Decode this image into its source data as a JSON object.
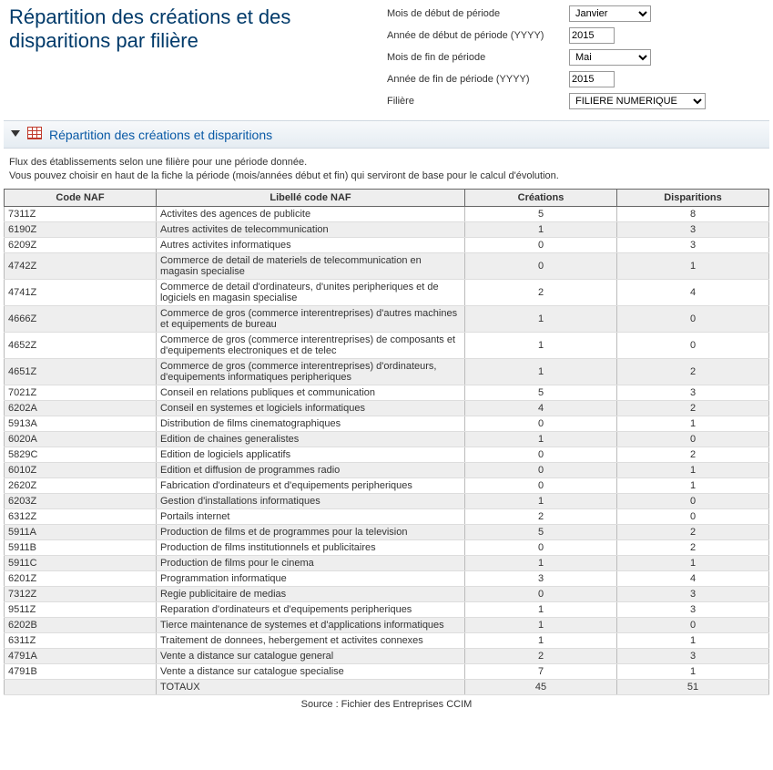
{
  "title": "Répartition des créations et des disparitions par filière",
  "filters": {
    "start_month_label": "Mois de début de période",
    "start_month_value": "Janvier",
    "start_year_label": "Année de début de période (YYYY)",
    "start_year_value": "2015",
    "end_month_label": "Mois de fin de période",
    "end_month_value": "Mai",
    "end_year_label": "Année de fin de période (YYYY)",
    "end_year_value": "2015",
    "filiere_label": "Filière",
    "filiere_value": "FILIERE NUMERIQUE"
  },
  "section_title": "Répartition des créations et disparitions",
  "description_line1": "Flux des établissements selon une filière pour une période donnée.",
  "description_line2": "Vous pouvez choisir en haut de la fiche la période (mois/années début et fin) qui serviront de base pour le calcul d'évolution.",
  "table": {
    "columns": [
      "Code NAF",
      "Libellé code NAF",
      "Créations",
      "Disparitions"
    ],
    "rows": [
      [
        "7311Z",
        "Activites des agences de publicite",
        "5",
        "8"
      ],
      [
        "6190Z",
        "Autres activites de telecommunication",
        "1",
        "3"
      ],
      [
        "6209Z",
        "Autres activites informatiques",
        "0",
        "3"
      ],
      [
        "4742Z",
        "Commerce de detail de materiels de telecommunication en magasin specialise",
        "0",
        "1"
      ],
      [
        "4741Z",
        "Commerce de detail d'ordinateurs, d'unites peripheriques et de logiciels en magasin specialise",
        "2",
        "4"
      ],
      [
        "4666Z",
        "Commerce de gros (commerce interentreprises) d'autres machines et equipements de bureau",
        "1",
        "0"
      ],
      [
        "4652Z",
        "Commerce de gros (commerce interentreprises) de composants et d'equipements electroniques et de telec",
        "1",
        "0"
      ],
      [
        "4651Z",
        "Commerce de gros (commerce interentreprises) d'ordinateurs, d'equipements informatiques peripheriques",
        "1",
        "2"
      ],
      [
        "7021Z",
        "Conseil en relations publiques et communication",
        "5",
        "3"
      ],
      [
        "6202A",
        "Conseil en systemes et logiciels informatiques",
        "4",
        "2"
      ],
      [
        "5913A",
        "Distribution de films cinematographiques",
        "0",
        "1"
      ],
      [
        "6020A",
        "Edition de chaines generalistes",
        "1",
        "0"
      ],
      [
        "5829C",
        "Edition de logiciels applicatifs",
        "0",
        "2"
      ],
      [
        "6010Z",
        "Edition et diffusion de programmes radio",
        "0",
        "1"
      ],
      [
        "2620Z",
        "Fabrication d'ordinateurs et d'equipements peripheriques",
        "0",
        "1"
      ],
      [
        "6203Z",
        "Gestion d'installations informatiques",
        "1",
        "0"
      ],
      [
        "6312Z",
        "Portails internet",
        "2",
        "0"
      ],
      [
        "5911A",
        "Production de films et de programmes pour la television",
        "5",
        "2"
      ],
      [
        "5911B",
        "Production de films institutionnels et publicitaires",
        "0",
        "2"
      ],
      [
        "5911C",
        "Production de films pour le cinema",
        "1",
        "1"
      ],
      [
        "6201Z",
        "Programmation informatique",
        "3",
        "4"
      ],
      [
        "7312Z",
        "Regie publicitaire de medias",
        "0",
        "3"
      ],
      [
        "9511Z",
        "Reparation d'ordinateurs et d'equipements peripheriques",
        "1",
        "3"
      ],
      [
        "6202B",
        "Tierce maintenance de systemes et d'applications informatiques",
        "1",
        "0"
      ],
      [
        "6311Z",
        "Traitement de donnees, hebergement et activites connexes",
        "1",
        "1"
      ],
      [
        "4791A",
        "Vente a distance sur catalogue general",
        "2",
        "3"
      ],
      [
        "4791B",
        "Vente a distance sur catalogue specialise",
        "7",
        "1"
      ]
    ],
    "total_label": "TOTAUX",
    "total_creations": "45",
    "total_disparitions": "51"
  },
  "source": "Source :  Fichier des Entreprises CCIM"
}
